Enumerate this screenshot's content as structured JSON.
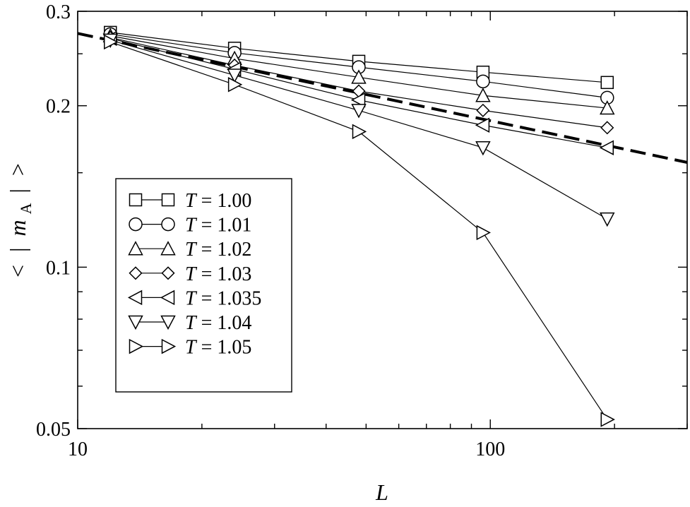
{
  "chart_data": {
    "type": "line",
    "xscale": "log",
    "yscale": "log",
    "xlim": [
      10,
      300
    ],
    "ylim": [
      0.05,
      0.3
    ],
    "xlabel": "L",
    "ylabel": "< | m_A | >",
    "ylabel_parts": {
      "open": "<",
      "bar": "|",
      "var": "m",
      "sub": "A",
      "close": ">"
    },
    "x_ticks": [
      10,
      100
    ],
    "x_tick_labels": [
      "10",
      "100"
    ],
    "y_ticks": [
      0.05,
      0.1,
      0.2,
      0.3
    ],
    "y_tick_labels": [
      "0.05",
      "0.1",
      "0.2",
      "0.3"
    ],
    "grid": false,
    "legend_position": "left-middle",
    "series": [
      {
        "name": "T = 1.00",
        "marker": "square",
        "x": [
          12,
          24,
          48,
          96,
          192
        ],
        "y": [
          0.274,
          0.256,
          0.242,
          0.231,
          0.221
        ]
      },
      {
        "name": "T = 1.01",
        "marker": "circle",
        "x": [
          12,
          24,
          48,
          96,
          192
        ],
        "y": [
          0.272,
          0.251,
          0.236,
          0.222,
          0.207
        ]
      },
      {
        "name": "T = 1.02",
        "marker": "triangle-up",
        "x": [
          12,
          24,
          48,
          96,
          192
        ],
        "y": [
          0.27,
          0.245,
          0.226,
          0.209,
          0.198
        ]
      },
      {
        "name": "T = 1.03",
        "marker": "diamond",
        "x": [
          12,
          24,
          48,
          96,
          192
        ],
        "y": [
          0.268,
          0.238,
          0.213,
          0.196,
          0.182
        ]
      },
      {
        "name": "T = 1.035",
        "marker": "triangle-left",
        "x": [
          12,
          24,
          48,
          96,
          192
        ],
        "y": [
          0.267,
          0.234,
          0.205,
          0.184,
          0.167
        ]
      },
      {
        "name": "T = 1.04",
        "marker": "triangle-down",
        "x": [
          12,
          24,
          48,
          96,
          192
        ],
        "y": [
          0.265,
          0.228,
          0.196,
          0.167,
          0.123
        ]
      },
      {
        "name": "T = 1.05",
        "marker": "triangle-right",
        "x": [
          12,
          24,
          48,
          96,
          192
        ],
        "y": [
          0.263,
          0.219,
          0.179,
          0.116,
          0.052
        ]
      }
    ],
    "reference_line": {
      "style": "dashed",
      "x": [
        10,
        300
      ],
      "y": [
        0.2728,
        0.1568
      ]
    }
  }
}
